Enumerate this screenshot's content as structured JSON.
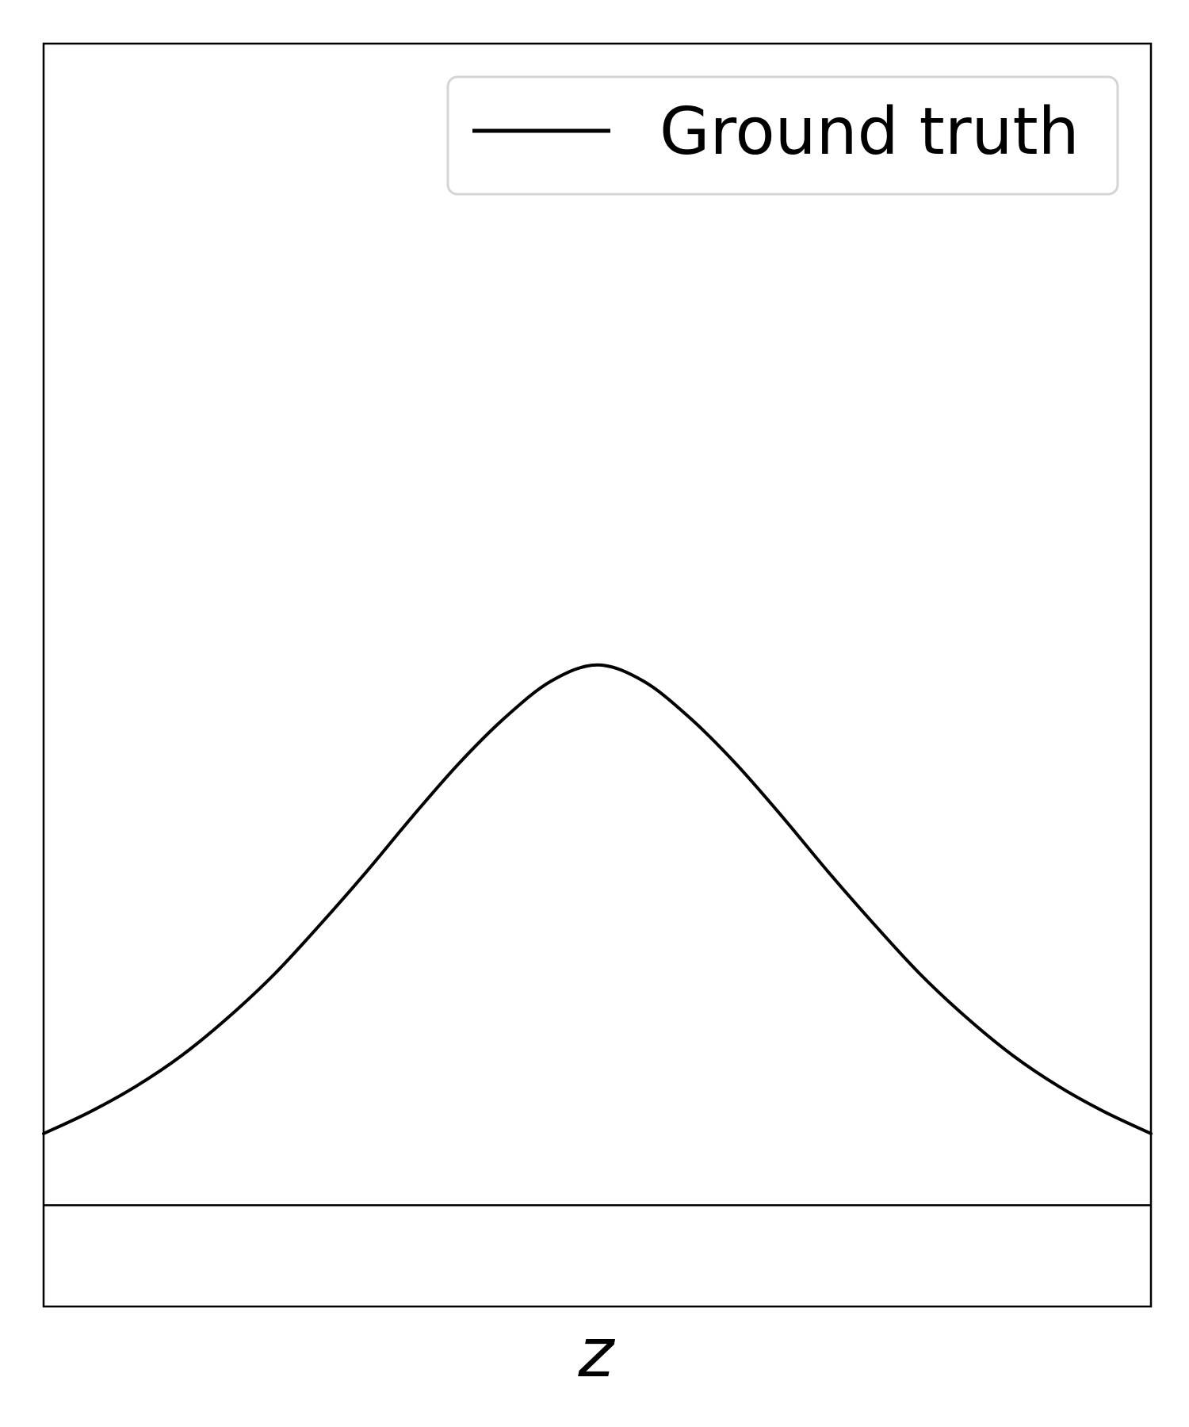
{
  "chart_data": {
    "type": "line",
    "title": "",
    "xlabel": "z",
    "ylabel": "",
    "grid": false,
    "legend_position": "top-right",
    "xlim": [
      -3,
      3
    ],
    "ylim": [
      -0.075,
      0.86
    ],
    "baseline_y": 0,
    "series": [
      {
        "name": "Ground truth",
        "color": "#000000",
        "x": [
          -3.0,
          -2.75,
          -2.5,
          -2.25,
          -2.0,
          -1.75,
          -1.5,
          -1.25,
          -1.0,
          -0.75,
          -0.5,
          -0.25,
          0.0,
          0.25,
          0.5,
          0.75,
          1.0,
          1.25,
          1.5,
          1.75,
          2.0,
          2.25,
          2.5,
          2.75,
          3.0
        ],
        "y": [
          0.053,
          0.069,
          0.088,
          0.111,
          0.139,
          0.171,
          0.208,
          0.247,
          0.288,
          0.327,
          0.361,
          0.388,
          0.4,
          0.388,
          0.361,
          0.327,
          0.288,
          0.247,
          0.208,
          0.171,
          0.139,
          0.111,
          0.088,
          0.069,
          0.053
        ]
      }
    ]
  }
}
